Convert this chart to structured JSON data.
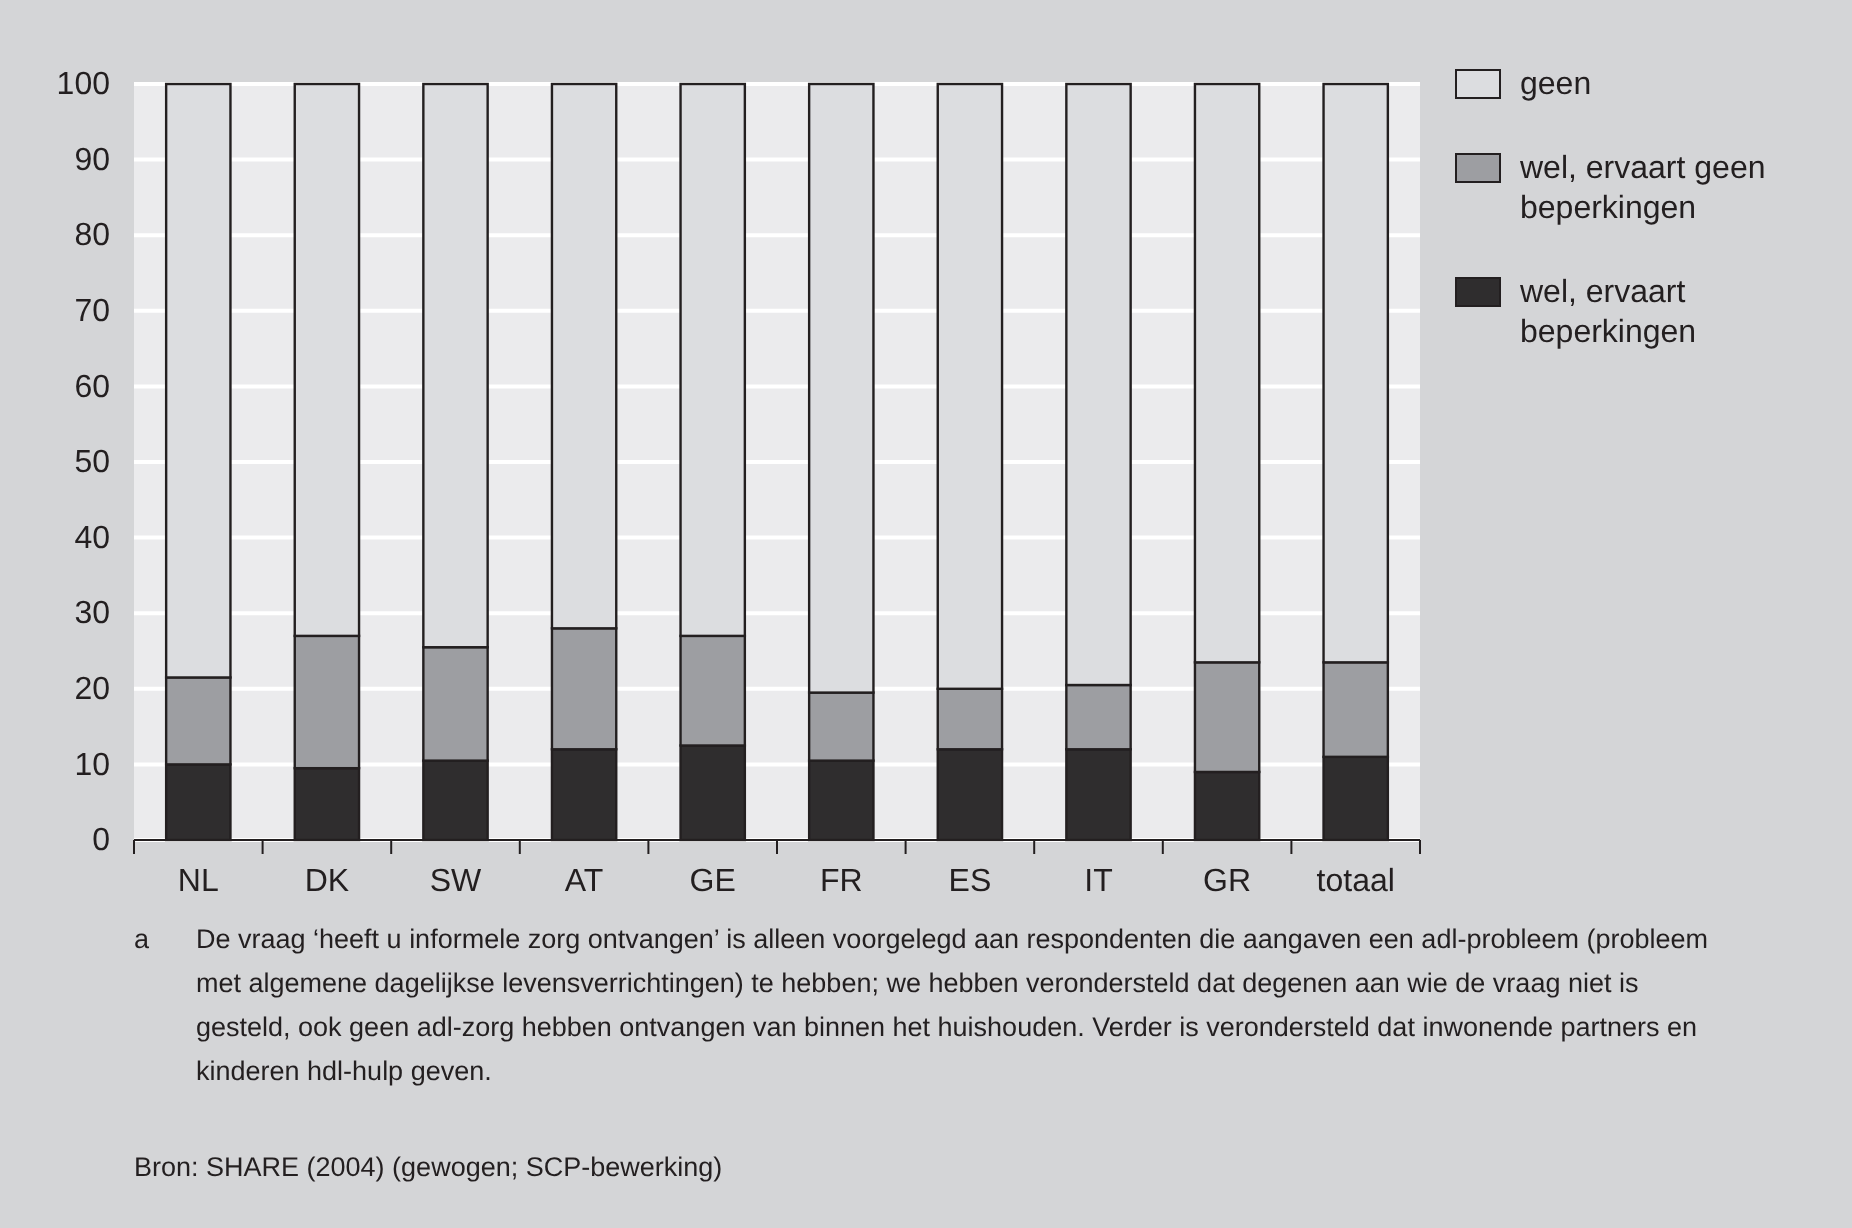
{
  "chart_data": {
    "type": "bar",
    "stacked": true,
    "categories": [
      "NL",
      "DK",
      "SW",
      "AT",
      "GE",
      "FR",
      "ES",
      "IT",
      "GR",
      "totaal"
    ],
    "series": [
      {
        "name": "wel, ervaart beperkingen",
        "color": "#2f2d2e",
        "values": [
          10,
          9.5,
          10.5,
          12,
          12.5,
          10.5,
          12,
          12,
          9,
          11
        ]
      },
      {
        "name": "wel, ervaart geen beperkingen",
        "color": "#9d9ea2",
        "values": [
          11.5,
          17.5,
          15,
          16,
          14.5,
          9,
          8,
          8.5,
          14.5,
          12.5
        ]
      },
      {
        "name": "geen",
        "color": "#dcdde0",
        "values": [
          78.5,
          73,
          74.5,
          72,
          73,
          80.5,
          80,
          79.5,
          76.5,
          76.5
        ]
      }
    ],
    "ylim": [
      0,
      100
    ],
    "yticks": [
      0,
      10,
      20,
      30,
      40,
      50,
      60,
      70,
      80,
      90,
      100
    ],
    "grid": "y",
    "legend": "top right",
    "annotations": [
      "a De vraag ‘heeft u informele zorg ontvangen’ is alleen voorgelegd aan respondenten die aangaven een adl-probleem (probleem met algemene dagelijkse levensverrichtingen) te hebben; we hebben verondersteld dat degenen aan wie de vraag niet is gesteld, ook geen adl-zorg hebben ontvangen van binnen het huishouden. Verder is verondersteld dat inwonende partners en kinderen hdl-hulp geven.",
      "Bron: SHARE (2004) (gewogen; SCP-bewerking)"
    ]
  }
}
